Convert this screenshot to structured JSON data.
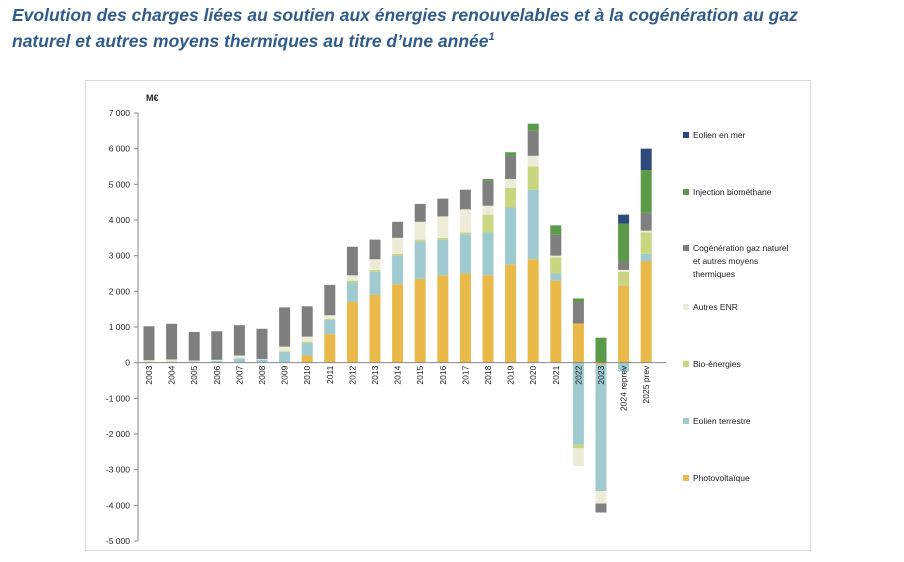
{
  "title": {
    "line1": "Evolution des charges liées au soutien aux énergies renouvelables et à la cogénération au gaz",
    "line2": "naturel et autres moyens thermiques au titre d’une année",
    "footnote_mark": "1"
  },
  "chart_data": {
    "type": "bar",
    "stacked": true,
    "title": "Evolution des charges liées au soutien aux énergies renouvelables et à la cogénération au gaz naturel et autres moyens thermiques au titre d’une année",
    "ylabel": "M€",
    "ylim": [
      -5000,
      7000
    ],
    "yticks": [
      7000,
      6000,
      5000,
      4000,
      3000,
      2000,
      1000,
      0,
      -1000,
      -2000,
      -3000,
      -4000,
      -5000
    ],
    "ytick_labels": [
      "7 000",
      "6 000",
      "5 000",
      "4 000",
      "3 000",
      "2 000",
      "1 000",
      "0",
      "-1 000",
      "-2 000",
      "-3 000",
      "-4 000",
      "-5 000"
    ],
    "legend_position": "right",
    "grid": false,
    "categories": [
      "2003",
      "2004",
      "2005",
      "2006",
      "2007",
      "2008",
      "2009",
      "2010",
      "2011",
      "2012",
      "2013",
      "2014",
      "2015",
      "2016",
      "2017",
      "2018",
      "2019",
      "2020",
      "2021",
      "2022",
      "2023",
      "2024 reprev",
      "2025 prev"
    ],
    "series": [
      {
        "name": "Photovoltaïque",
        "color": "#e9b949",
        "values": [
          0,
          0,
          0,
          0,
          0,
          0,
          0,
          200,
          800,
          1700,
          1900,
          2200,
          2350,
          2450,
          2500,
          2450,
          2750,
          2900,
          2300,
          1100,
          -50,
          2150,
          2850
        ]
      },
      {
        "name": "Eolien terrestre",
        "color": "#9ecad0",
        "values": [
          20,
          30,
          30,
          50,
          120,
          80,
          300,
          350,
          400,
          550,
          650,
          800,
          1050,
          1000,
          1100,
          1200,
          1600,
          1950,
          200,
          -2300,
          -3550,
          -250,
          200
        ]
      },
      {
        "name": "Bio-énergies",
        "color": "#c7d67f",
        "values": [
          0,
          0,
          0,
          0,
          0,
          0,
          20,
          30,
          30,
          50,
          50,
          50,
          50,
          50,
          50,
          500,
          550,
          650,
          450,
          -100,
          0,
          400,
          600
        ]
      },
      {
        "name": "Autres ENR",
        "color": "#ececd8",
        "values": [
          50,
          60,
          30,
          30,
          80,
          20,
          130,
          150,
          100,
          150,
          300,
          450,
          500,
          600,
          650,
          250,
          250,
          300,
          50,
          -500,
          -350,
          50,
          50
        ]
      },
      {
        "name": "Cogénération gaz naturel et autres moyens thermiques",
        "color": "#7f7f7f",
        "values": [
          950,
          1000,
          800,
          800,
          850,
          850,
          1100,
          850,
          850,
          800,
          550,
          450,
          500,
          500,
          550,
          700,
          650,
          700,
          600,
          600,
          -250,
          250,
          500
        ]
      },
      {
        "name": "Injection biométhane",
        "color": "#5a9a48",
        "values": [
          0,
          0,
          0,
          0,
          0,
          0,
          0,
          0,
          0,
          0,
          0,
          0,
          0,
          0,
          0,
          50,
          100,
          200,
          250,
          100,
          700,
          1050,
          1200
        ]
      },
      {
        "name": "Eolien en mer",
        "color": "#2d4a7a",
        "values": [
          0,
          0,
          0,
          0,
          0,
          0,
          0,
          0,
          0,
          0,
          0,
          0,
          0,
          0,
          0,
          0,
          0,
          0,
          0,
          0,
          0,
          250,
          600
        ]
      }
    ],
    "legend_order": [
      "Eolien en mer",
      "Injection biométhane",
      "Cogénération gaz naturel et autres moyens thermiques",
      "Autres ENR",
      "Bio-énergies",
      "Eolien terrestre",
      "Photovoltaïque"
    ],
    "legend_lines": [
      [
        "Eolien en mer"
      ],
      [
        "Injection biométhane"
      ],
      [
        "Cogénération gaz naturel",
        "et autres moyens",
        "thermiques"
      ],
      [
        "Autres ENR"
      ],
      [
        "Bio-énergies"
      ],
      [
        "Eolien terrestre"
      ],
      [
        "Photovoltaïque"
      ]
    ]
  }
}
